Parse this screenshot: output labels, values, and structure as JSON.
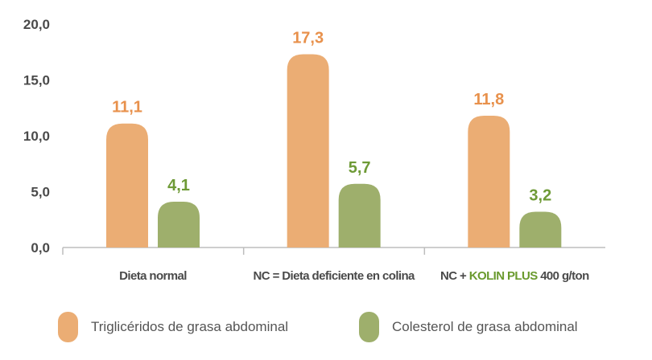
{
  "chart_data": {
    "type": "bar",
    "categories": [
      "Dieta normal",
      "NC = Dieta deficiente en colina",
      "NC + KOLIN PLUS 400 g/ton"
    ],
    "category_label_parts": [
      [
        {
          "text": "Dieta normal",
          "highlight": false
        }
      ],
      [
        {
          "text": "NC = Dieta deficiente en colina",
          "highlight": false
        }
      ],
      [
        {
          "text": "NC + ",
          "highlight": false
        },
        {
          "text": "KOLIN PLUS",
          "highlight": true
        },
        {
          "text": " 400 g/ton",
          "highlight": false
        }
      ]
    ],
    "series": [
      {
        "name": "Triglicéridos de grasa abdominal",
        "values": [
          11.1,
          17.3,
          11.8
        ],
        "labels": [
          "11,1",
          "17,3",
          "11,8"
        ],
        "color": "#EBAD74",
        "label_color": "#E8914C"
      },
      {
        "name": "Colesterol de grasa abdominal",
        "values": [
          4.1,
          5.7,
          3.2
        ],
        "labels": [
          "4,1",
          "5,7",
          "3,2"
        ],
        "color": "#9EAF6C",
        "label_color": "#6E9A36"
      }
    ],
    "yticks": [
      0,
      5,
      10,
      15,
      20
    ],
    "ytick_labels": [
      "0,0",
      "5,0",
      "10,0",
      "15,0",
      "20,0"
    ],
    "ylim": [
      0,
      20
    ],
    "grid": false,
    "legend_position": "bottom",
    "highlight_color": "#6A9A2E",
    "title": "",
    "xlabel": "",
    "ylabel": ""
  }
}
